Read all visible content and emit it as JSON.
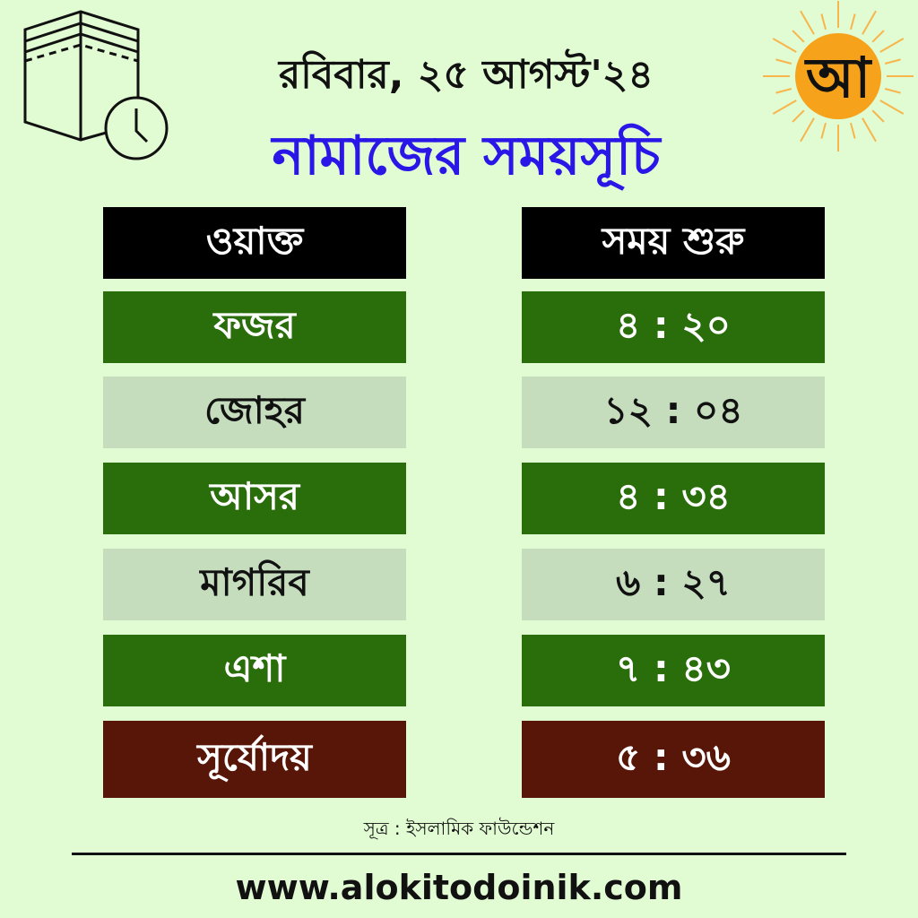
{
  "header": {
    "date": "রবিবার, ২৫ আগস্ট'২৪",
    "title": "নামাজের সময়সূচি",
    "logo_letter": "আ"
  },
  "table": {
    "headers": [
      "ওয়াক্ত",
      "সময় শুরু"
    ],
    "rows": [
      {
        "name": "ফজর",
        "time": "৪ : ২০",
        "style": "green"
      },
      {
        "name": "জোহর",
        "time": "১২ : ০৪",
        "style": "grey"
      },
      {
        "name": "আসর",
        "time": "৪ : ৩৪",
        "style": "green"
      },
      {
        "name": "মাগরিব",
        "time": "৬ : ২৭",
        "style": "grey"
      },
      {
        "name": "এশা",
        "time": "৭ : ৪৩",
        "style": "green"
      },
      {
        "name": "সূর্যোদয়",
        "time": "৫ : ৩৬",
        "style": "red"
      }
    ]
  },
  "footer": {
    "source": "সূত্র : ইসলামিক ফাউন্ডেশন",
    "website": "www.alokitodoinik.com"
  },
  "colors": {
    "background": "#e1fbd3",
    "title": "#2a16e6",
    "green_row": "#2a6e0c",
    "grey_row": "#c5dcbd",
    "sunrise_row": "#581608",
    "logo_sun": "#f7a21b"
  }
}
